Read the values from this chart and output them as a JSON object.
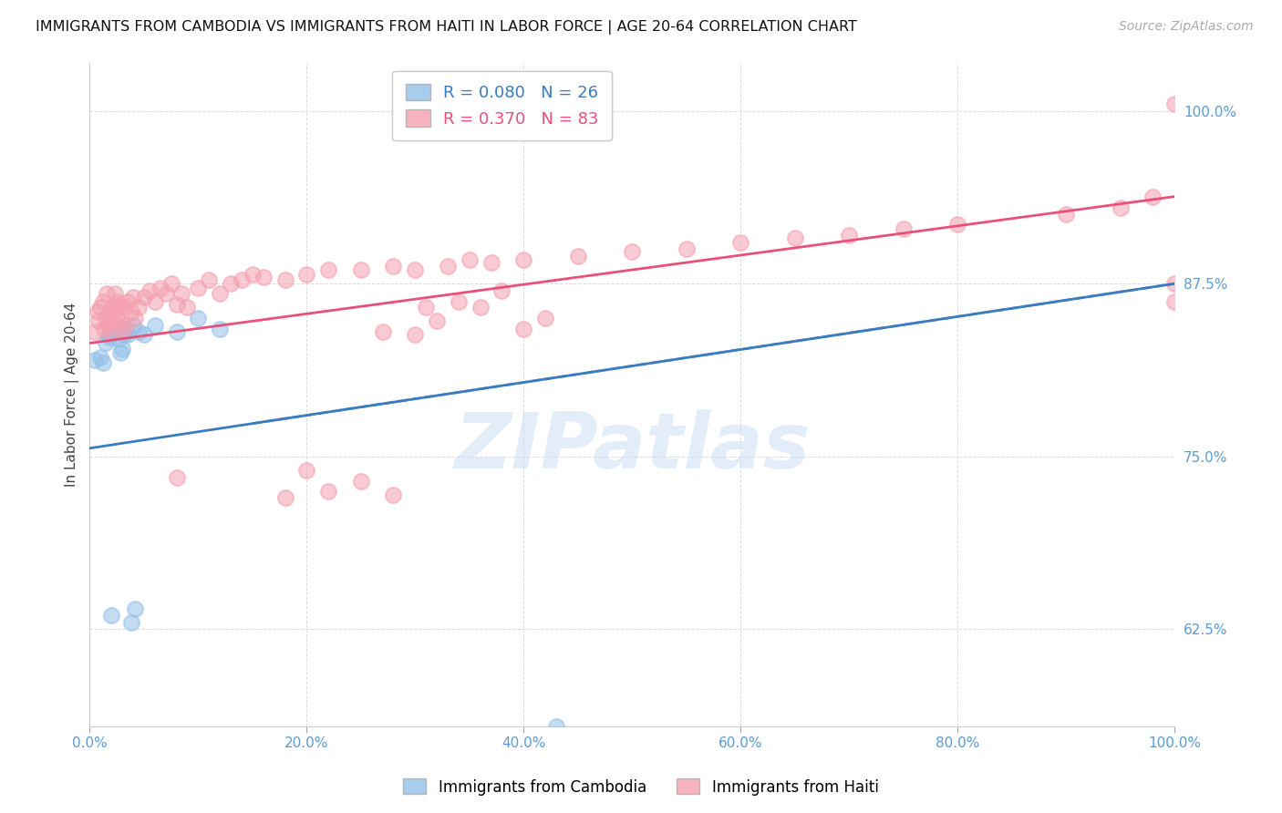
{
  "title": "IMMIGRANTS FROM CAMBODIA VS IMMIGRANTS FROM HAITI IN LABOR FORCE | AGE 20-64 CORRELATION CHART",
  "source": "Source: ZipAtlas.com",
  "ylabel": "In Labor Force | Age 20-64",
  "xlim": [
    0.0,
    1.0
  ],
  "ylim": [
    0.555,
    1.035
  ],
  "yticks": [
    0.625,
    0.75,
    0.875,
    1.0
  ],
  "ytick_labels": [
    "62.5%",
    "75.0%",
    "87.5%",
    "100.0%"
  ],
  "xticks": [
    0.0,
    0.2,
    0.4,
    0.6,
    0.8,
    1.0
  ],
  "xtick_labels": [
    "0.0%",
    "20.0%",
    "40.0%",
    "60.0%",
    "80.0%",
    "100.0%"
  ],
  "watermark": "ZIPatlas",
  "cambodia_color": "#92c0e8",
  "haiti_color": "#f4a0b0",
  "cambodia_line_color": "#3a7cbf",
  "haiti_line_color": "#e8507a",
  "axis_label_color": "#5b9bd5",
  "grid_color": "#d8d8d8",
  "bg_color": "#ffffff",
  "cambodia_x": [
    0.005,
    0.01,
    0.012,
    0.015,
    0.017,
    0.018,
    0.019,
    0.02,
    0.022,
    0.025,
    0.027,
    0.028,
    0.03,
    0.032,
    0.033,
    0.035,
    0.038,
    0.04,
    0.042,
    0.045,
    0.05,
    0.06,
    0.08,
    0.1,
    0.12,
    0.43
  ],
  "cambodia_y": [
    0.82,
    0.822,
    0.818,
    0.832,
    0.838,
    0.836,
    0.84,
    0.635,
    0.842,
    0.84,
    0.835,
    0.825,
    0.828,
    0.838,
    0.842,
    0.838,
    0.63,
    0.845,
    0.64,
    0.84,
    0.838,
    0.845,
    0.84,
    0.85,
    0.842,
    0.555
  ],
  "haiti_x": [
    0.005,
    0.007,
    0.008,
    0.01,
    0.012,
    0.013,
    0.015,
    0.016,
    0.017,
    0.018,
    0.019,
    0.02,
    0.021,
    0.022,
    0.023,
    0.024,
    0.025,
    0.026,
    0.027,
    0.028,
    0.03,
    0.032,
    0.033,
    0.035,
    0.038,
    0.04,
    0.042,
    0.045,
    0.05,
    0.055,
    0.06,
    0.065,
    0.07,
    0.075,
    0.08,
    0.085,
    0.09,
    0.1,
    0.11,
    0.12,
    0.13,
    0.14,
    0.15,
    0.16,
    0.18,
    0.2,
    0.22,
    0.25,
    0.28,
    0.3,
    0.33,
    0.35,
    0.37,
    0.4,
    0.45,
    0.5,
    0.55,
    0.6,
    0.65,
    0.7,
    0.75,
    0.8,
    0.9,
    0.95,
    0.98,
    1.0,
    1.0,
    1.0,
    0.27,
    0.31,
    0.34,
    0.36,
    0.38,
    0.28,
    0.18,
    0.08,
    0.25,
    0.22,
    0.2,
    0.3,
    0.32,
    0.4,
    0.42
  ],
  "haiti_y": [
    0.84,
    0.855,
    0.848,
    0.858,
    0.862,
    0.842,
    0.85,
    0.868,
    0.845,
    0.85,
    0.855,
    0.84,
    0.858,
    0.848,
    0.868,
    0.86,
    0.852,
    0.862,
    0.848,
    0.858,
    0.842,
    0.858,
    0.845,
    0.862,
    0.855,
    0.865,
    0.85,
    0.858,
    0.865,
    0.87,
    0.862,
    0.872,
    0.868,
    0.875,
    0.86,
    0.868,
    0.858,
    0.872,
    0.878,
    0.868,
    0.875,
    0.878,
    0.882,
    0.88,
    0.878,
    0.882,
    0.885,
    0.885,
    0.888,
    0.885,
    0.888,
    0.892,
    0.89,
    0.892,
    0.895,
    0.898,
    0.9,
    0.905,
    0.908,
    0.91,
    0.915,
    0.918,
    0.925,
    0.93,
    0.938,
    1.005,
    0.862,
    0.875,
    0.84,
    0.858,
    0.862,
    0.858,
    0.87,
    0.722,
    0.72,
    0.735,
    0.732,
    0.725,
    0.74,
    0.838,
    0.848,
    0.842,
    0.85
  ],
  "cam_line_x0": 0.0,
  "cam_line_y0": 0.756,
  "cam_line_x1": 1.0,
  "cam_line_y1": 0.875,
  "hai_line_x0": 0.0,
  "hai_line_y0": 0.832,
  "hai_line_x1": 1.0,
  "hai_line_y1": 0.938,
  "title_fontsize": 11.5,
  "label_fontsize": 11,
  "ylabel_fontsize": 11
}
